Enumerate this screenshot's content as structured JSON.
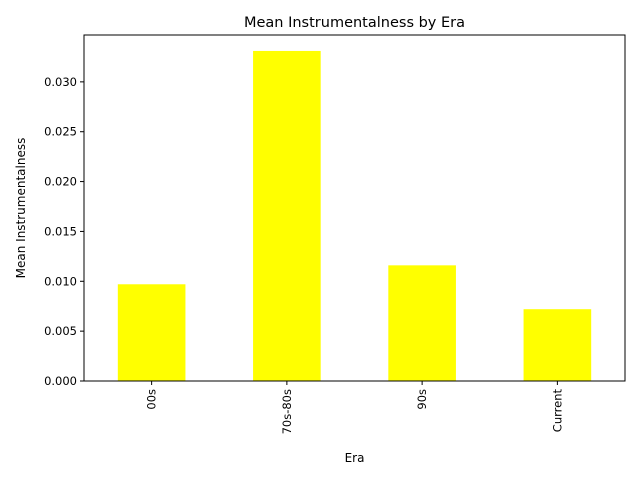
{
  "chart_data": {
    "type": "bar",
    "title": "Mean Instrumentalness by Era",
    "xlabel": "Era",
    "ylabel": "Mean Instrumentalness",
    "categories": [
      "00s",
      "70s-80s",
      "90s",
      "Current"
    ],
    "values": [
      0.0097,
      0.0331,
      0.0116,
      0.0072
    ],
    "ylim": [
      0,
      0.0347
    ],
    "yticks": [
      0.0,
      0.005,
      0.01,
      0.015,
      0.02,
      0.025,
      0.03
    ],
    "ytick_labels": [
      "0.000",
      "0.005",
      "0.010",
      "0.015",
      "0.020",
      "0.025",
      "0.030"
    ],
    "bar_color": "#ffff00",
    "grid": false,
    "legend": "none"
  }
}
